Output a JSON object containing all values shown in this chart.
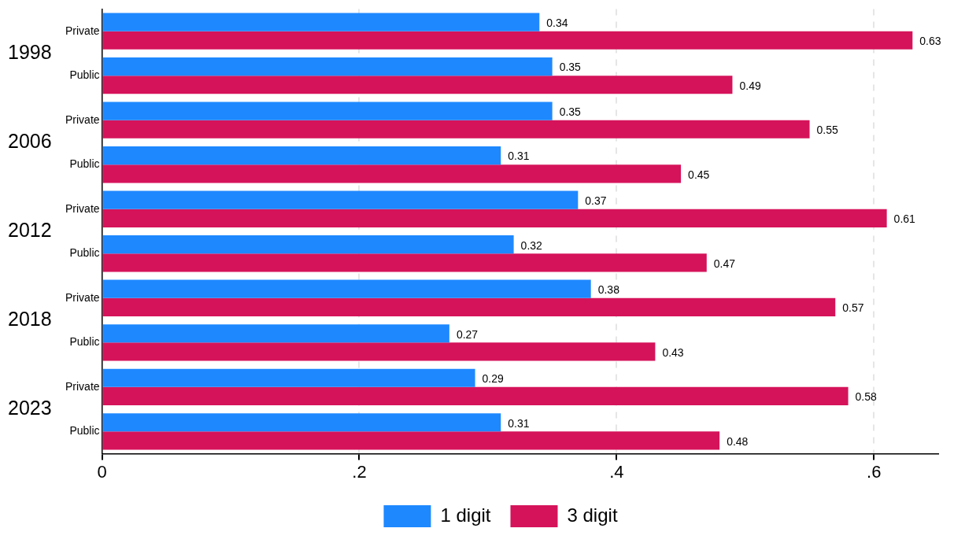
{
  "chart_data": {
    "type": "bar",
    "orientation": "horizontal",
    "categories": [
      "Private",
      "Public",
      "Private",
      "Public",
      "Private",
      "Public",
      "Private",
      "Public",
      "Private",
      "Public"
    ],
    "annotations": [
      "1998",
      "2006",
      "2012",
      "2018",
      "2023"
    ],
    "series": [
      {
        "name": "1 digit",
        "color": "#1e88ff",
        "values": [
          0.34,
          0.35,
          0.35,
          0.31,
          0.37,
          0.32,
          0.38,
          0.27,
          0.29,
          0.31
        ]
      },
      {
        "name": "3 digit",
        "color": "#d5135a",
        "values": [
          0.63,
          0.49,
          0.55,
          0.45,
          0.61,
          0.47,
          0.57,
          0.43,
          0.58,
          0.48
        ]
      }
    ],
    "xlim": [
      0,
      0.65
    ],
    "xticks": [
      0,
      {
        "value": 0.2,
        "label": ".2"
      },
      {
        "value": 0.4,
        "label": ".4"
      },
      {
        "value": 0.6,
        "label": ".6"
      }
    ],
    "grid": "x",
    "data_labels": true,
    "legend": "bottom"
  }
}
